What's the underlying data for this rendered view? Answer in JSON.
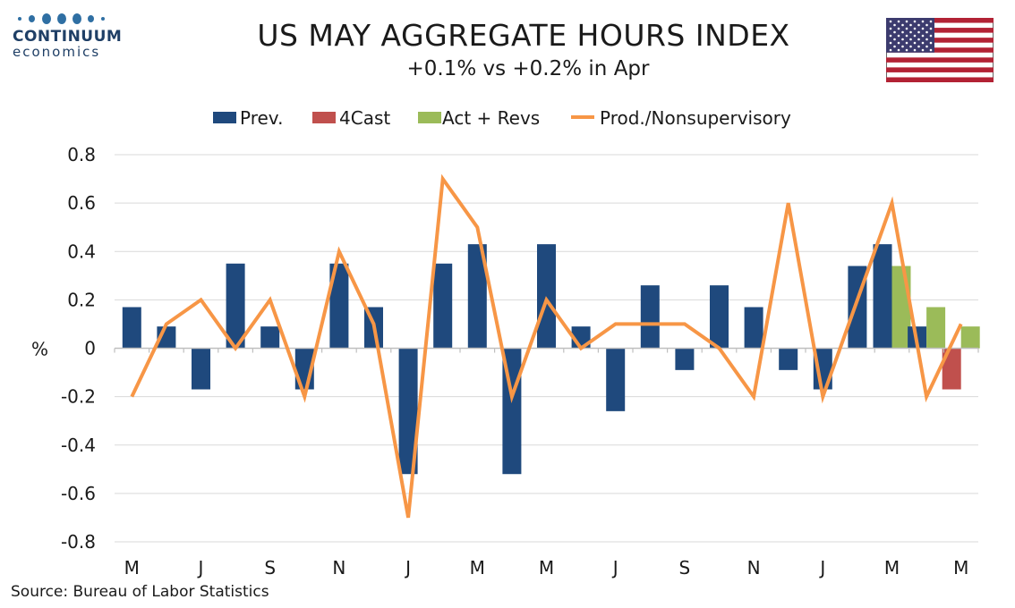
{
  "logo": {
    "name": "CONTINUUM",
    "sub": "economics"
  },
  "title": "US MAY AGGREGATE HOURS INDEX",
  "subtitle": "+0.1% vs +0.2% in Apr",
  "source": "Source: Bureau of Labor Statistics",
  "colors": {
    "prev": "#1f497d",
    "forecast": "#c0504d",
    "actual": "#9bbb59",
    "line": "#f79646",
    "grid": "#d9d9d9"
  },
  "chart_data": {
    "type": "bar",
    "ylabel": "%",
    "ylim": [
      -0.8,
      0.8
    ],
    "yticks": [
      0.8,
      0.6,
      0.4,
      0.2,
      0,
      -0.2,
      -0.4,
      -0.6,
      -0.8
    ],
    "ytick_labels": [
      "0.8",
      "0.6",
      "0.4",
      "0.2",
      "0",
      "-0.2",
      "-0.4",
      "-0.6",
      "-0.8"
    ],
    "xtick_labels": [
      "M",
      "J",
      "S",
      "N",
      "J",
      "M",
      "M",
      "J",
      "S",
      "N",
      "J",
      "M",
      "M"
    ],
    "legend": [
      "Prev.",
      "4Cast",
      "Act + Revs",
      "Prod./Nonsupervisory"
    ],
    "legend_position": "top",
    "grid": true,
    "series": [
      {
        "name": "Prev.",
        "type": "bar",
        "values": [
          0.17,
          0.09,
          -0.17,
          0.35,
          0.09,
          -0.17,
          0.35,
          0.17,
          -0.52,
          0.35,
          0.43,
          -0.52,
          0.43,
          0.09,
          -0.26,
          0.26,
          -0.09,
          0.26,
          0.17,
          -0.09,
          -0.17,
          0.34,
          0.43,
          0.09,
          null
        ]
      },
      {
        "name": "4Cast",
        "type": "bar",
        "values": [
          null,
          null,
          null,
          null,
          null,
          null,
          null,
          null,
          null,
          null,
          null,
          null,
          null,
          null,
          null,
          null,
          null,
          null,
          null,
          null,
          null,
          null,
          null,
          null,
          -0.17
        ]
      },
      {
        "name": "Act + Revs",
        "type": "bar",
        "values": [
          null,
          null,
          null,
          null,
          null,
          null,
          null,
          null,
          null,
          null,
          null,
          null,
          null,
          null,
          null,
          null,
          null,
          null,
          null,
          null,
          null,
          null,
          0.34,
          0.17,
          0.09
        ]
      },
      {
        "name": "Prod./Nonsupervisory",
        "type": "line",
        "values": [
          -0.2,
          0.1,
          0.2,
          0.0,
          0.2,
          -0.2,
          0.4,
          0.1,
          -0.7,
          0.7,
          0.5,
          -0.2,
          0.2,
          0.0,
          0.1,
          0.1,
          0.1,
          0.0,
          -0.2,
          0.6,
          -0.2,
          0.2,
          0.6,
          -0.2,
          0.1
        ]
      }
    ]
  }
}
